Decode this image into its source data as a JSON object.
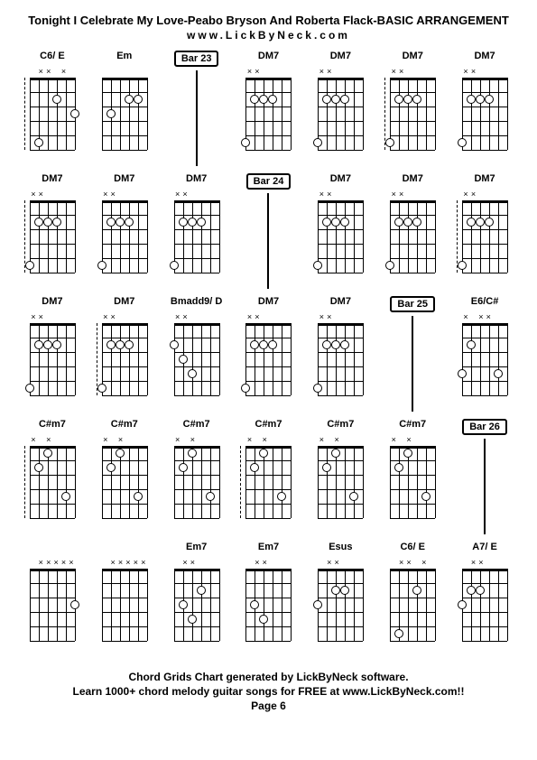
{
  "title": "Tonight I Celebrate My Love-Peabo Bryson And Roberta Flack-BASIC ARRANGEMENT",
  "subtitle": "www.LickByNeck.com",
  "footer": {
    "line1": "Chord Grids Chart generated by LickByNeck software.",
    "line2": "Learn 1000+ chord melody guitar songs for FREE at www.LickByNeck.com!!",
    "page": "Page 6"
  },
  "fret_count": 5,
  "string_count": 6,
  "diagram_width": 50,
  "diagram_height": 80,
  "cells": [
    {
      "type": "chord",
      "label": "C6/ E",
      "markers": [
        "",
        "x",
        "x",
        "",
        "x",
        ""
      ],
      "dots": [
        {
          "s": 5,
          "f": 3
        },
        {
          "s": 3,
          "f": 2
        },
        {
          "s": 1,
          "f": 5
        }
      ],
      "dashed": true
    },
    {
      "type": "chord",
      "label": "Em",
      "markers": [
        "",
        "",
        "",
        "",
        "",
        ""
      ],
      "dots": [
        {
          "s": 4,
          "f": 2
        },
        {
          "s": 3,
          "f": 2
        },
        {
          "s": 1,
          "f": 3
        }
      ]
    },
    {
      "type": "bar",
      "label": "Bar 23"
    },
    {
      "type": "chord",
      "label": "DM7",
      "markers": [
        "x",
        "x",
        "",
        "",
        "",
        ""
      ],
      "dots": [
        {
          "s": 3,
          "f": 2
        },
        {
          "s": 2,
          "f": 2
        },
        {
          "s": 1,
          "f": 2
        },
        {
          "s": 0,
          "f": 5
        }
      ]
    },
    {
      "type": "chord",
      "label": "DM7",
      "markers": [
        "x",
        "x",
        "",
        "",
        "",
        ""
      ],
      "dots": [
        {
          "s": 3,
          "f": 2
        },
        {
          "s": 2,
          "f": 2
        },
        {
          "s": 1,
          "f": 2
        },
        {
          "s": 0,
          "f": 5
        }
      ]
    },
    {
      "type": "chord",
      "label": "DM7",
      "markers": [
        "x",
        "x",
        "",
        "",
        "",
        ""
      ],
      "dots": [
        {
          "s": 3,
          "f": 2
        },
        {
          "s": 2,
          "f": 2
        },
        {
          "s": 1,
          "f": 2
        },
        {
          "s": 0,
          "f": 5
        }
      ],
      "dashed": true
    },
    {
      "type": "chord",
      "label": "DM7",
      "markers": [
        "x",
        "x",
        "",
        "",
        "",
        ""
      ],
      "dots": [
        {
          "s": 3,
          "f": 2
        },
        {
          "s": 2,
          "f": 2
        },
        {
          "s": 1,
          "f": 2
        },
        {
          "s": 0,
          "f": 5
        }
      ]
    },
    {
      "type": "chord",
      "label": "DM7",
      "markers": [
        "x",
        "x",
        "",
        "",
        "",
        ""
      ],
      "dots": [
        {
          "s": 3,
          "f": 2
        },
        {
          "s": 2,
          "f": 2
        },
        {
          "s": 1,
          "f": 2
        },
        {
          "s": 0,
          "f": 5
        }
      ],
      "dashed": true
    },
    {
      "type": "chord",
      "label": "DM7",
      "markers": [
        "x",
        "x",
        "",
        "",
        "",
        ""
      ],
      "dots": [
        {
          "s": 3,
          "f": 2
        },
        {
          "s": 2,
          "f": 2
        },
        {
          "s": 1,
          "f": 2
        },
        {
          "s": 0,
          "f": 5
        }
      ]
    },
    {
      "type": "chord",
      "label": "DM7",
      "markers": [
        "x",
        "x",
        "",
        "",
        "",
        ""
      ],
      "dots": [
        {
          "s": 3,
          "f": 2
        },
        {
          "s": 2,
          "f": 2
        },
        {
          "s": 1,
          "f": 2
        },
        {
          "s": 0,
          "f": 5
        }
      ]
    },
    {
      "type": "bar",
      "label": "Bar 24"
    },
    {
      "type": "chord",
      "label": "DM7",
      "markers": [
        "x",
        "x",
        "",
        "",
        "",
        ""
      ],
      "dots": [
        {
          "s": 3,
          "f": 2
        },
        {
          "s": 2,
          "f": 2
        },
        {
          "s": 1,
          "f": 2
        },
        {
          "s": 0,
          "f": 5
        }
      ]
    },
    {
      "type": "chord",
      "label": "DM7",
      "markers": [
        "x",
        "x",
        "",
        "",
        "",
        ""
      ],
      "dots": [
        {
          "s": 3,
          "f": 2
        },
        {
          "s": 2,
          "f": 2
        },
        {
          "s": 1,
          "f": 2
        },
        {
          "s": 0,
          "f": 5
        }
      ]
    },
    {
      "type": "chord",
      "label": "DM7",
      "markers": [
        "x",
        "x",
        "",
        "",
        "",
        ""
      ],
      "dots": [
        {
          "s": 3,
          "f": 2
        },
        {
          "s": 2,
          "f": 2
        },
        {
          "s": 1,
          "f": 2
        },
        {
          "s": 0,
          "f": 5
        }
      ],
      "dashed": true
    },
    {
      "type": "chord",
      "label": "DM7",
      "markers": [
        "x",
        "x",
        "",
        "",
        "",
        ""
      ],
      "dots": [
        {
          "s": 3,
          "f": 2
        },
        {
          "s": 2,
          "f": 2
        },
        {
          "s": 1,
          "f": 2
        },
        {
          "s": 0,
          "f": 5
        }
      ]
    },
    {
      "type": "chord",
      "label": "DM7",
      "markers": [
        "x",
        "x",
        "",
        "",
        "",
        ""
      ],
      "dots": [
        {
          "s": 3,
          "f": 2
        },
        {
          "s": 2,
          "f": 2
        },
        {
          "s": 1,
          "f": 2
        },
        {
          "s": 0,
          "f": 5
        }
      ],
      "dashed": true
    },
    {
      "type": "chord",
      "label": "Bmadd9/ D",
      "markers": [
        "x",
        "x",
        "",
        "",
        "",
        ""
      ],
      "dots": [
        {
          "s": 2,
          "f": 4
        },
        {
          "s": 1,
          "f": 3
        },
        {
          "s": 0,
          "f": 2
        }
      ]
    },
    {
      "type": "chord",
      "label": "DM7",
      "markers": [
        "x",
        "x",
        "",
        "",
        "",
        ""
      ],
      "dots": [
        {
          "s": 3,
          "f": 2
        },
        {
          "s": 2,
          "f": 2
        },
        {
          "s": 1,
          "f": 2
        },
        {
          "s": 0,
          "f": 5
        }
      ]
    },
    {
      "type": "chord",
      "label": "DM7",
      "markers": [
        "x",
        "x",
        "",
        "",
        "",
        ""
      ],
      "dots": [
        {
          "s": 3,
          "f": 2
        },
        {
          "s": 2,
          "f": 2
        },
        {
          "s": 1,
          "f": 2
        },
        {
          "s": 0,
          "f": 5
        }
      ]
    },
    {
      "type": "bar",
      "label": "Bar 25"
    },
    {
      "type": "chord",
      "label": "E6/C#",
      "markers": [
        "x",
        "",
        "x",
        "x",
        "",
        ""
      ],
      "dots": [
        {
          "s": 4,
          "f": 4
        },
        {
          "s": 1,
          "f": 2
        },
        {
          "s": 0,
          "f": 4
        }
      ]
    },
    {
      "type": "chord",
      "label": "C#m7",
      "markers": [
        "x",
        "",
        "x",
        "",
        "",
        ""
      ],
      "dots": [
        {
          "s": 4,
          "f": 4
        },
        {
          "s": 2,
          "f": 1
        },
        {
          "s": 1,
          "f": 2
        }
      ],
      "dashed": true
    },
    {
      "type": "chord",
      "label": "C#m7",
      "markers": [
        "x",
        "",
        "x",
        "",
        "",
        ""
      ],
      "dots": [
        {
          "s": 4,
          "f": 4
        },
        {
          "s": 2,
          "f": 1
        },
        {
          "s": 1,
          "f": 2
        }
      ]
    },
    {
      "type": "chord",
      "label": "C#m7",
      "markers": [
        "x",
        "",
        "x",
        "",
        "",
        ""
      ],
      "dots": [
        {
          "s": 4,
          "f": 4
        },
        {
          "s": 2,
          "f": 1
        },
        {
          "s": 1,
          "f": 2
        }
      ]
    },
    {
      "type": "chord",
      "label": "C#m7",
      "markers": [
        "x",
        "",
        "x",
        "",
        "",
        ""
      ],
      "dots": [
        {
          "s": 4,
          "f": 4
        },
        {
          "s": 2,
          "f": 1
        },
        {
          "s": 1,
          "f": 2
        }
      ],
      "dashed": true
    },
    {
      "type": "chord",
      "label": "C#m7",
      "markers": [
        "x",
        "",
        "x",
        "",
        "",
        ""
      ],
      "dots": [
        {
          "s": 4,
          "f": 4
        },
        {
          "s": 2,
          "f": 1
        },
        {
          "s": 1,
          "f": 2
        }
      ]
    },
    {
      "type": "chord",
      "label": "C#m7",
      "markers": [
        "x",
        "",
        "x",
        "",
        "",
        ""
      ],
      "dots": [
        {
          "s": 4,
          "f": 4
        },
        {
          "s": 2,
          "f": 1
        },
        {
          "s": 1,
          "f": 2
        }
      ]
    },
    {
      "type": "bar",
      "label": "Bar 26"
    },
    {
      "type": "chord",
      "label": "",
      "markers": [
        "",
        "x",
        "x",
        "x",
        "x",
        "x"
      ],
      "dots": [
        {
          "s": 5,
          "f": 3
        }
      ]
    },
    {
      "type": "chord",
      "label": "",
      "markers": [
        "",
        "x",
        "x",
        "x",
        "x",
        "x"
      ],
      "dots": []
    },
    {
      "type": "chord",
      "label": "Em7",
      "markers": [
        "",
        "x",
        "x",
        "",
        "",
        ""
      ],
      "dots": [
        {
          "s": 1,
          "f": 3
        },
        {
          "s": 2,
          "f": 4
        },
        {
          "s": 3,
          "f": 2
        }
      ]
    },
    {
      "type": "chord",
      "label": "Em7",
      "markers": [
        "",
        "x",
        "x",
        "",
        "",
        ""
      ],
      "dots": [
        {
          "s": 1,
          "f": 3
        },
        {
          "s": 2,
          "f": 4
        }
      ]
    },
    {
      "type": "chord",
      "label": "Esus",
      "markers": [
        "",
        "x",
        "x",
        "",
        "",
        ""
      ],
      "dots": [
        {
          "s": 2,
          "f": 2
        },
        {
          "s": 3,
          "f": 2
        },
        {
          "s": 0,
          "f": 3
        }
      ]
    },
    {
      "type": "chord",
      "label": "C6/ E",
      "markers": [
        "",
        "x",
        "x",
        "",
        "x",
        ""
      ],
      "dots": [
        {
          "s": 3,
          "f": 2
        },
        {
          "s": 1,
          "f": 5
        }
      ]
    },
    {
      "type": "chord",
      "label": "A7/ E",
      "markers": [
        "",
        "x",
        "x",
        "",
        "",
        ""
      ],
      "dots": [
        {
          "s": 2,
          "f": 2
        },
        {
          "s": 1,
          "f": 2
        },
        {
          "s": 0,
          "f": 3
        }
      ]
    }
  ]
}
